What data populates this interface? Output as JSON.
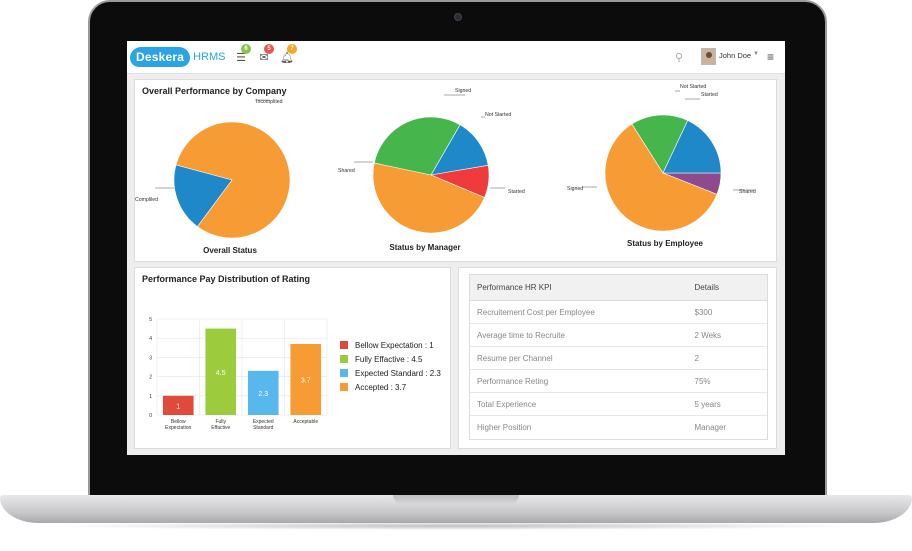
{
  "header": {
    "logo_text": "Deskera",
    "logo_suffix": "HRMS",
    "nav_icons": [
      {
        "icon": "list-icon",
        "badge": "6",
        "badge_color": "#8bc34a"
      },
      {
        "icon": "mail-icon",
        "badge": "5",
        "badge_color": "#ef5350"
      },
      {
        "icon": "bell-icon",
        "badge": "7",
        "badge_color": "#f5a623"
      }
    ],
    "user_name": "John Doe"
  },
  "overall_panel": {
    "title": "Overall Performance by Company",
    "pies": [
      {
        "caption": "Overall Status",
        "slices": [
          {
            "label": "Compliled",
            "value": 81,
            "color": "#f79c34"
          },
          {
            "label": "Incomplited",
            "value": 19,
            "color": "#1f88c9"
          }
        ]
      },
      {
        "caption": "Status by Manager",
        "slices": [
          {
            "label": "Signed",
            "value": 14,
            "color": "#1f88c9"
          },
          {
            "label": "Not Started",
            "value": 9,
            "color": "#ef3b3b"
          },
          {
            "label": "Started",
            "value": 47,
            "color": "#f79c34"
          },
          {
            "label": "Shared",
            "value": 30,
            "color": "#45b54c"
          }
        ]
      },
      {
        "caption": "Status by Employee",
        "slices": [
          {
            "label": "Not Started",
            "value": 6,
            "color": "#8d4b8e"
          },
          {
            "label": "Started",
            "value": 60,
            "color": "#f79c34"
          },
          {
            "label": "Shared",
            "value": 16,
            "color": "#45b54c"
          },
          {
            "label": "Signed",
            "value": 18,
            "color": "#1f88c9"
          }
        ]
      }
    ]
  },
  "pay_panel": {
    "title": "Performance Pay Distribution of Rating"
  },
  "chart_data": {
    "type": "bar",
    "categories": [
      "Bellow Expectation",
      "Fully Effactive",
      "Expected Standard",
      "Acceptable"
    ],
    "values": [
      1,
      4.5,
      2.3,
      3.7
    ],
    "colors": [
      "#e04a3b",
      "#9ccc3d",
      "#58b8ee",
      "#f79c34"
    ],
    "ylim": [
      0,
      5
    ],
    "yticks": [
      0,
      1,
      2,
      3,
      4,
      5
    ],
    "legend": [
      "Bellow Expectation : 1",
      "Fully Effactive : 4.5",
      "Expected Standard : 2.3",
      "Accepted : 3.7"
    ],
    "legend_position": "right",
    "grid": true
  },
  "kpi_table": {
    "headers": [
      "Performance HR KPI",
      "Details"
    ],
    "rows": [
      [
        "Recruitement Cost per Employee",
        "$300"
      ],
      [
        "Average time to Recruite",
        "2 Weks"
      ],
      [
        "Resume per Channel",
        "2"
      ],
      [
        "Performance Reting",
        "75%"
      ],
      [
        "Total Experience",
        "5 years"
      ],
      [
        "Higher Position",
        "Manager"
      ]
    ]
  }
}
